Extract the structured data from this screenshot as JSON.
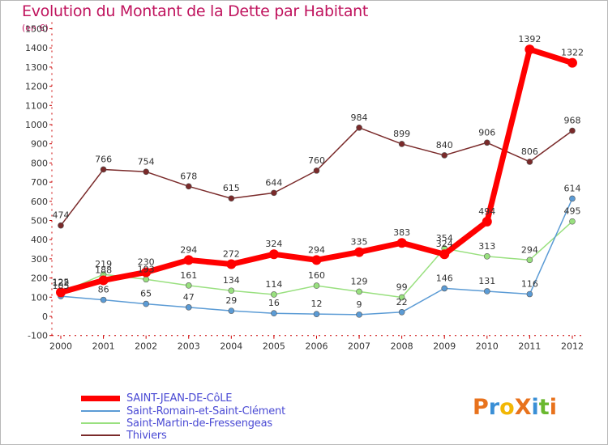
{
  "title": "Evolution du Montant de la Dette par Habitant",
  "subtitle": "(en €)",
  "logo": {
    "text": "ProXiti",
    "letters": [
      {
        "ch": "P",
        "color": "#e8721c"
      },
      {
        "ch": "r",
        "color": "#3a8fd6"
      },
      {
        "ch": "o",
        "color": "#f2b705"
      },
      {
        "ch": "X",
        "color": "#e8721c"
      },
      {
        "ch": "i",
        "color": "#3a8fd6"
      },
      {
        "ch": "t",
        "color": "#6ab82f"
      },
      {
        "ch": "i",
        "color": "#e8721c"
      }
    ]
  },
  "chart_data": {
    "type": "line",
    "title": "Evolution du Montant de la Dette par Habitant",
    "subtitle": "(en €)",
    "xlabel": "",
    "ylabel": "(en €)",
    "x": [
      "2000",
      "2001",
      "2002",
      "2003",
      "2004",
      "2005",
      "2006",
      "2007",
      "2008",
      "2009",
      "2010",
      "2011",
      "2012"
    ],
    "ylim": [
      -100,
      1500
    ],
    "yticks": [
      -100,
      0,
      100,
      200,
      300,
      400,
      500,
      600,
      700,
      800,
      900,
      1000,
      1100,
      1200,
      1300,
      1400,
      1500
    ],
    "grid": false,
    "legend": "bottom-left",
    "series": [
      {
        "name": "SAINT-JEAN-DE-CôLE",
        "color": "#ff0000",
        "width": 7,
        "values": [
          125,
          188,
          230,
          294,
          272,
          324,
          294,
          335,
          383,
          324,
          494,
          1392,
          1322
        ],
        "labels": [
          "125",
          "188",
          "230",
          "294",
          "272",
          "324",
          "294",
          "335",
          "383",
          "324",
          "494",
          "1392",
          "1322"
        ]
      },
      {
        "name": "Saint-Romain-et-Saint-Clément",
        "color": "#5b9bd5",
        "width": 1.5,
        "values": [
          105,
          86,
          65,
          47,
          29,
          16,
          12,
          9,
          22,
          146,
          131,
          116,
          614
        ],
        "labels": [
          "105",
          "86",
          "65",
          "47",
          "29",
          "16",
          "12",
          "9",
          "22",
          "146",
          "131",
          "116",
          "614"
        ]
      },
      {
        "name": "Saint-Martin-de-Fressengeas",
        "color": "#99e07f",
        "width": 1.5,
        "values": [
          122,
          219,
          193,
          161,
          134,
          114,
          160,
          129,
          99,
          354,
          313,
          294,
          495
        ],
        "labels": [
          "122",
          "219",
          "193",
          "161",
          "134",
          "114",
          "160",
          "129",
          "99",
          "354",
          "313",
          "294",
          "495"
        ]
      },
      {
        "name": "Thiviers",
        "color": "#7a2a2a",
        "width": 1.5,
        "values": [
          474,
          766,
          754,
          678,
          615,
          644,
          760,
          984,
          899,
          840,
          906,
          806,
          968
        ],
        "labels": [
          "474",
          "766",
          "754",
          "678",
          "615",
          "644",
          "760",
          "984",
          "899",
          "840",
          "906",
          "806",
          "968"
        ]
      }
    ]
  }
}
